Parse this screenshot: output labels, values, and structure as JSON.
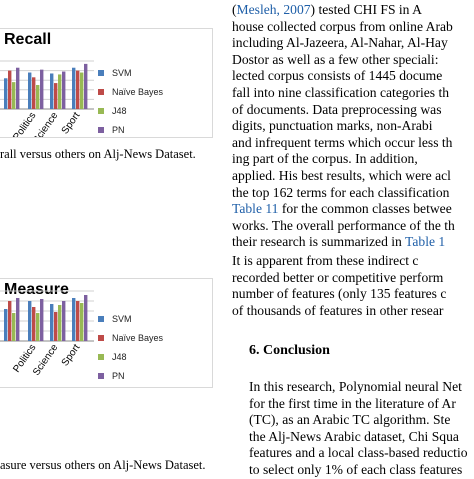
{
  "chart_data": [
    {
      "type": "bar",
      "title": "Recall",
      "categories": [
        "Politics",
        "Science",
        "Sport"
      ],
      "series": [
        {
          "name": "SVM",
          "values": [
            0.88,
            0.87,
            0.93
          ]
        },
        {
          "name": "Naïve Bayes",
          "values": [
            0.83,
            0.77,
            0.9
          ]
        },
        {
          "name": "J48",
          "values": [
            0.75,
            0.86,
            0.88
          ]
        },
        {
          "name": "PN",
          "values": [
            0.91,
            0.89,
            0.97
          ]
        }
      ],
      "colors": [
        "#4a7ebb",
        "#be4b48",
        "#98b954",
        "#7d60a0"
      ],
      "legend_position": "right",
      "grid": true
    },
    {
      "type": "bar",
      "title": "Measure",
      "categories": [
        "Politics",
        "Science",
        "Sport"
      ],
      "series": [
        {
          "name": "SVM",
          "values": [
            0.9,
            0.87,
            0.93
          ]
        },
        {
          "name": "Naïve Bayes",
          "values": [
            0.84,
            0.79,
            0.9
          ]
        },
        {
          "name": "J48",
          "values": [
            0.78,
            0.86,
            0.88
          ]
        },
        {
          "name": "PN",
          "values": [
            0.92,
            0.9,
            0.96
          ]
        }
      ],
      "colors": [
        "#4a7ebb",
        "#be4b48",
        "#98b954",
        "#7d60a0"
      ],
      "legend_position": "right",
      "grid": true
    }
  ],
  "captions": {
    "recall": "rall versus others on Alj-News Dataset.",
    "measure": "asure versus others on Alj-News Dataset."
  },
  "right_text": {
    "lines": [
      {
        "pre": "(",
        "link": "Mesleh, 2007",
        "post": ") tested CHI FS in A"
      },
      {
        "pre": "house collected corpus from online Arab"
      },
      {
        "pre": "including Al-Jazeera, Al-Nahar, Al-Hay"
      },
      {
        "pre": "Dostor as well as a few other speciali:"
      },
      {
        "pre": "lected corpus consists of 1445 docume"
      },
      {
        "pre": "fall into nine classification categories th"
      },
      {
        "pre": "of documents. Data preprocessing was"
      },
      {
        "pre": "digits, punctuation marks, non-Arabi"
      },
      {
        "pre": "and infrequent terms which occur less th"
      },
      {
        "pre": "ing part of the corpus.  In addition,"
      },
      {
        "pre": "applied. His best results, which were acl"
      },
      {
        "pre": "the top 162 terms for each classification"
      },
      {
        "link": "Table 11",
        "post": " for the common classes betwee"
      },
      {
        "pre": "works. The overall performance of the th"
      },
      {
        "pre": "their research is summarized in ",
        "link": "Table 1"
      },
      {
        "pre": "   It is apparent from these indirect c"
      },
      {
        "pre": "recorded better or competitive perform"
      },
      {
        "pre": "number of features (only 135 features c"
      },
      {
        "pre": "of thousands of features in other resear"
      }
    ]
  },
  "conclusion": {
    "heading": "6. Conclusion",
    "lines": [
      "In this research, Polynomial neural Net",
      "for the first time in the literature of Ar",
      "(TC), as an Arabic TC algorithm. Ste",
      "the Alj-News Arabic dataset, Chi Squa",
      "features and a local class-based reductio",
      "to select only 1% of each class features"
    ]
  }
}
